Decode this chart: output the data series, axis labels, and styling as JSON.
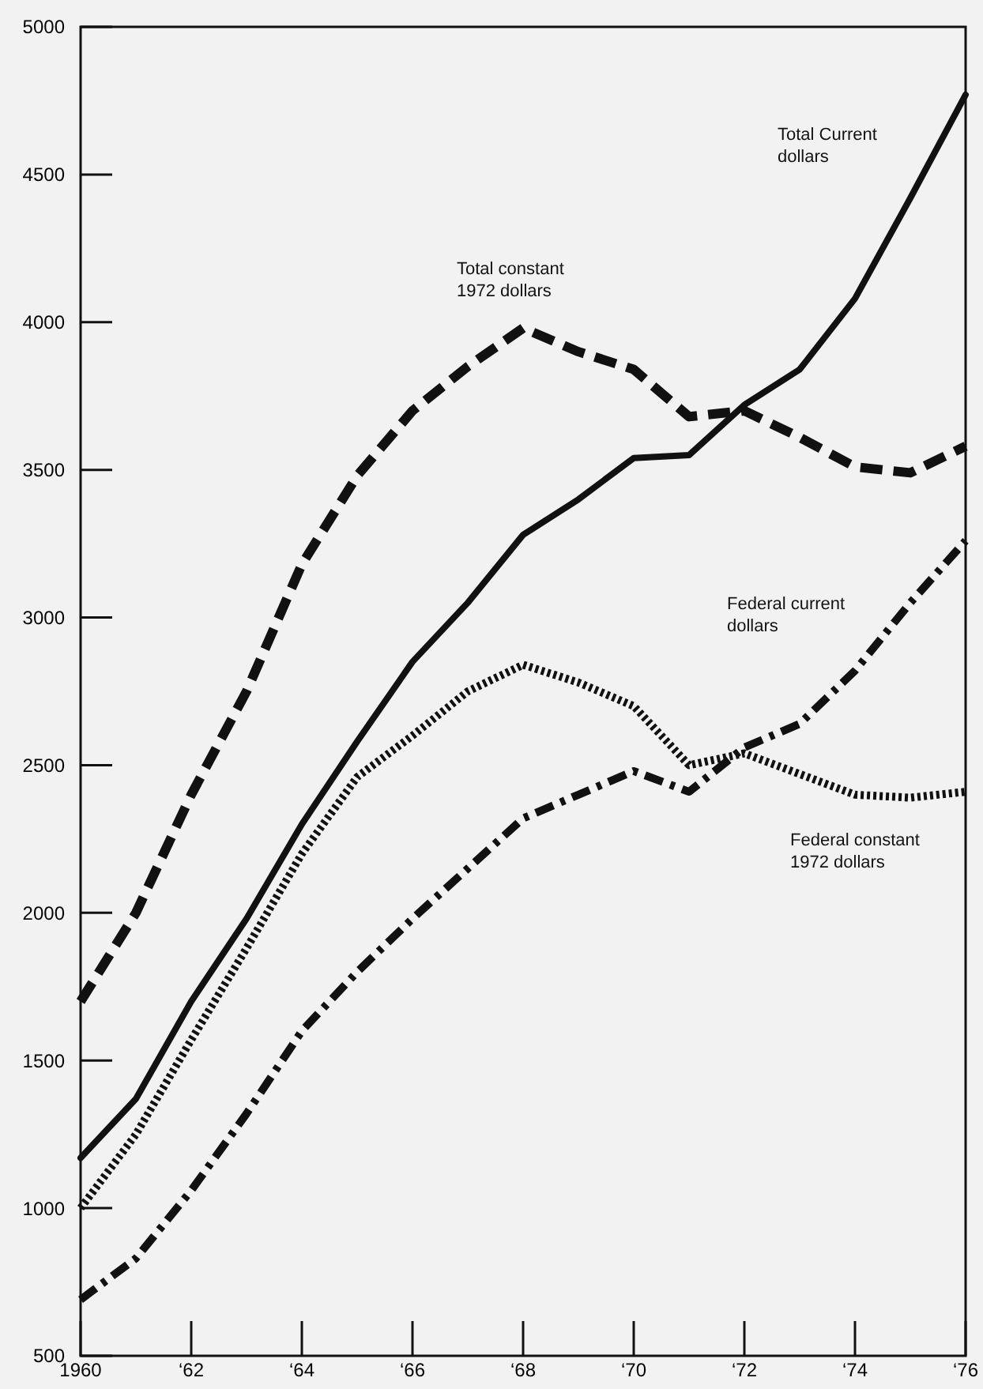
{
  "chart_data": {
    "type": "line",
    "categories": [
      "1960",
      null,
      "‘62",
      null,
      "‘64",
      null,
      "‘66",
      null,
      "‘68",
      null,
      "‘70",
      null,
      "‘72",
      null,
      "‘74",
      null,
      "‘76"
    ],
    "ylim": [
      500,
      5000
    ],
    "yticks": [
      500,
      1000,
      1500,
      2000,
      2500,
      3000,
      3500,
      4000,
      4500,
      5000
    ],
    "grid": false,
    "marker": "none",
    "series": [
      {
        "name": "Total Current\ndollars",
        "color": "#111111",
        "line_style": "solid",
        "values": [
          1170,
          1370,
          1700,
          1980,
          2300,
          2580,
          2850,
          3050,
          3280,
          3400,
          3540,
          3550,
          3720,
          3840,
          4080,
          4420,
          4770
        ]
      },
      {
        "name": "Total constant\n1972 dollars",
        "color": "#111111",
        "line_style": "dashed",
        "values": [
          1700,
          2000,
          2400,
          2750,
          3180,
          3480,
          3700,
          3850,
          3980,
          3900,
          3840,
          3680,
          3700,
          3610,
          3510,
          3490,
          3580
        ]
      },
      {
        "name": "Federal current\ndollars",
        "color": "#111111",
        "line_style": "dashdot",
        "values": [
          690,
          830,
          1060,
          1320,
          1600,
          1800,
          1980,
          2150,
          2320,
          2400,
          2480,
          2410,
          2560,
          2640,
          2820,
          3050,
          3260
        ]
      },
      {
        "name": "Federal constant\n1972 dollars",
        "color": "#111111",
        "line_style": "dotted",
        "values": [
          1000,
          1250,
          1570,
          1880,
          2200,
          2460,
          2600,
          2750,
          2840,
          2780,
          2700,
          2500,
          2540,
          2470,
          2400,
          2390,
          2410
        ]
      }
    ]
  }
}
